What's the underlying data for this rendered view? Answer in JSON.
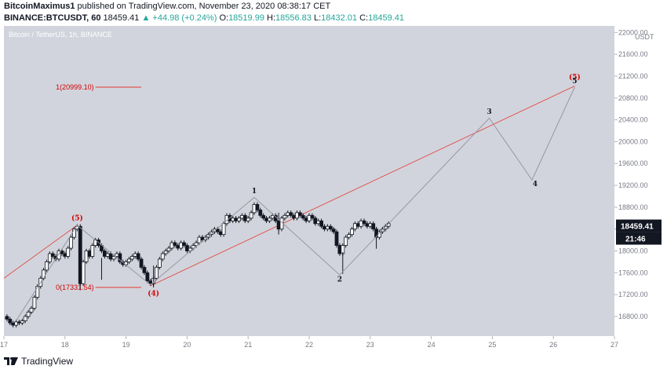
{
  "header": {
    "author": "BitcoinMaximus1",
    "published": " published on TradingView.com, November 23, 2020 08:38:17 CET",
    "symbol": "BINANCE:BTCUSDT, 60",
    "last": "18459.41",
    "change": "▲ +44.98 (+0.24%)",
    "o_label": "O:",
    "o_value": "18519.99",
    "h_label": "H:",
    "h_value": "18556.83",
    "l_label": "L:",
    "l_value": "18432.01",
    "c_label": "C:",
    "c_value": "18459.41"
  },
  "brand": {
    "name": "TradingView"
  },
  "colors": {
    "bg": "#d1d4dc",
    "candle": "#131722",
    "wave": "#9598a1",
    "fib": "#e53935",
    "red_label": "#d50000"
  },
  "chart_data": {
    "type": "line",
    "title": "Bitcoin / TetherUS, 1h, BINANCE",
    "currency": "USDT",
    "xlim": [
      17.0,
      27.0
    ],
    "ylim": [
      16440,
      22120
    ],
    "y_ticks": [
      16800,
      17200,
      17600,
      18000,
      18400,
      18800,
      19200,
      19600,
      20000,
      20400,
      20800,
      21200,
      21600,
      22000
    ],
    "y_tick_labels": [
      "16800.00",
      "17200.00",
      "17600.00",
      "18000.00",
      "18400.00",
      "18800.00",
      "19200.00",
      "19600.00",
      "20000.00",
      "20400.00",
      "20800.00",
      "21200.00",
      "21600.00",
      "22000.00"
    ],
    "x_ticks": [
      17,
      18,
      19,
      20,
      21,
      22,
      23,
      24,
      25,
      26,
      27
    ],
    "x_tick_labels": [
      "17",
      "18",
      "19",
      "20",
      "21",
      "22",
      "23",
      "24",
      "25",
      "26",
      "27"
    ],
    "last_price": "18459.41",
    "countdown": "21:46",
    "price_path": [
      [
        17.0,
        16800
      ],
      [
        17.05,
        16750
      ],
      [
        17.1,
        16680
      ],
      [
        17.15,
        16640
      ],
      [
        17.2,
        16700
      ],
      [
        17.25,
        16680
      ],
      [
        17.3,
        16720
      ],
      [
        17.35,
        16800
      ],
      [
        17.4,
        16880
      ],
      [
        17.45,
        16950
      ],
      [
        17.5,
        17150
      ],
      [
        17.55,
        17350
      ],
      [
        17.6,
        17500
      ],
      [
        17.65,
        17650
      ],
      [
        17.7,
        17800
      ],
      [
        17.75,
        17950
      ],
      [
        17.8,
        17900
      ],
      [
        17.85,
        17850
      ],
      [
        17.9,
        18000
      ],
      [
        17.95,
        17950
      ],
      [
        18.0,
        17900
      ],
      [
        18.05,
        18050
      ],
      [
        18.1,
        18250
      ],
      [
        18.15,
        18400
      ],
      [
        18.2,
        18450
      ],
      [
        18.25,
        17400
      ],
      [
        18.3,
        17800
      ],
      [
        18.35,
        18000
      ],
      [
        18.4,
        17900
      ],
      [
        18.45,
        18100
      ],
      [
        18.5,
        18200
      ],
      [
        18.55,
        18100
      ],
      [
        18.6,
        18000
      ],
      [
        18.65,
        17900
      ],
      [
        18.7,
        17950
      ],
      [
        18.75,
        17850
      ],
      [
        18.8,
        17900
      ],
      [
        18.85,
        17950
      ],
      [
        18.9,
        17800
      ],
      [
        18.95,
        17750
      ],
      [
        19.0,
        17800
      ],
      [
        19.05,
        17850
      ],
      [
        19.1,
        17900
      ],
      [
        19.15,
        17950
      ],
      [
        19.2,
        17850
      ],
      [
        19.25,
        17700
      ],
      [
        19.3,
        17600
      ],
      [
        19.35,
        17450
      ],
      [
        19.4,
        17400
      ],
      [
        19.45,
        17500
      ],
      [
        19.5,
        17700
      ],
      [
        19.55,
        17850
      ],
      [
        19.6,
        17950
      ],
      [
        19.65,
        18000
      ],
      [
        19.7,
        18050
      ],
      [
        19.75,
        18150
      ],
      [
        19.8,
        18100
      ],
      [
        19.85,
        18050
      ],
      [
        19.9,
        18150
      ],
      [
        19.95,
        18100
      ],
      [
        20.0,
        18000
      ],
      [
        20.05,
        18050
      ],
      [
        20.1,
        18100
      ],
      [
        20.15,
        18150
      ],
      [
        20.2,
        18250
      ],
      [
        20.25,
        18200
      ],
      [
        20.3,
        18250
      ],
      [
        20.35,
        18300
      ],
      [
        20.4,
        18350
      ],
      [
        20.45,
        18400
      ],
      [
        20.5,
        18350
      ],
      [
        20.55,
        18300
      ],
      [
        20.6,
        18500
      ],
      [
        20.65,
        18650
      ],
      [
        20.7,
        18550
      ],
      [
        20.75,
        18600
      ],
      [
        20.8,
        18550
      ],
      [
        20.85,
        18600
      ],
      [
        20.9,
        18650
      ],
      [
        20.95,
        18550
      ],
      [
        21.0,
        18600
      ],
      [
        21.05,
        18700
      ],
      [
        21.1,
        18850
      ],
      [
        21.15,
        18750
      ],
      [
        21.2,
        18650
      ],
      [
        21.25,
        18600
      ],
      [
        21.3,
        18550
      ],
      [
        21.35,
        18600
      ],
      [
        21.4,
        18650
      ],
      [
        21.45,
        18550
      ],
      [
        21.5,
        18400
      ],
      [
        21.55,
        18600
      ],
      [
        21.6,
        18650
      ],
      [
        21.65,
        18700
      ],
      [
        21.7,
        18650
      ],
      [
        21.75,
        18600
      ],
      [
        21.8,
        18700
      ],
      [
        21.85,
        18650
      ],
      [
        21.9,
        18600
      ],
      [
        21.95,
        18550
      ],
      [
        22.0,
        18650
      ],
      [
        22.05,
        18600
      ],
      [
        22.1,
        18500
      ],
      [
        22.15,
        18550
      ],
      [
        22.2,
        18450
      ],
      [
        22.25,
        18400
      ],
      [
        22.3,
        18450
      ],
      [
        22.35,
        18400
      ],
      [
        22.4,
        18350
      ],
      [
        22.45,
        18100
      ],
      [
        22.5,
        17950
      ],
      [
        22.55,
        18100
      ],
      [
        22.6,
        18250
      ],
      [
        22.65,
        18300
      ],
      [
        22.7,
        18400
      ],
      [
        22.75,
        18500
      ],
      [
        22.8,
        18450
      ],
      [
        22.85,
        18550
      ],
      [
        22.9,
        18500
      ],
      [
        22.95,
        18450
      ],
      [
        23.0,
        18500
      ],
      [
        23.05,
        18400
      ],
      [
        23.1,
        18250
      ],
      [
        23.15,
        18350
      ],
      [
        23.2,
        18400
      ],
      [
        23.25,
        18450
      ],
      [
        23.3,
        18500
      ]
    ],
    "spikes": [
      [
        18.25,
        17280
      ],
      [
        18.6,
        17470
      ],
      [
        19.45,
        17330
      ],
      [
        21.5,
        18300
      ],
      [
        22.55,
        17580
      ],
      [
        23.1,
        18040
      ]
    ],
    "fib_line": {
      "from": [
        19.4,
        17360
      ],
      "to": [
        26.35,
        21020
      ]
    },
    "fib_line2": {
      "from": [
        17.0,
        17500
      ],
      "to": [
        18.2,
        18470
      ]
    },
    "wave_path": [
      [
        17.2,
        16720
      ],
      [
        18.2,
        18470
      ],
      [
        19.4,
        17380
      ],
      [
        21.1,
        18980
      ],
      [
        22.5,
        17560
      ],
      [
        24.95,
        20430
      ],
      [
        25.65,
        19300
      ],
      [
        26.35,
        21000
      ]
    ],
    "wave_labels": [
      {
        "text": "(5)",
        "x": 18.2,
        "y": 18560,
        "color": "red"
      },
      {
        "text": "(4)",
        "x": 19.45,
        "y": 17180,
        "color": "red"
      },
      {
        "text": "1",
        "x": 21.1,
        "y": 19060,
        "color": "dark"
      },
      {
        "text": "2",
        "x": 22.5,
        "y": 17440,
        "color": "dark"
      },
      {
        "text": "3",
        "x": 24.95,
        "y": 20510,
        "color": "dark"
      },
      {
        "text": "4",
        "x": 25.7,
        "y": 19190,
        "color": "dark"
      },
      {
        "text": "(5)",
        "x": 26.35,
        "y": 21140,
        "color": "red"
      },
      {
        "text": "5",
        "x": 26.35,
        "y": 21070,
        "color": "dark"
      }
    ],
    "fib_levels": [
      {
        "label": "1(20999.10)",
        "y": 20999.1,
        "x1": 18.2,
        "x2": 19.25
      },
      {
        "label": "0(17331.54)",
        "y": 17331.54,
        "x1": 18.2,
        "x2": 19.25
      }
    ]
  }
}
